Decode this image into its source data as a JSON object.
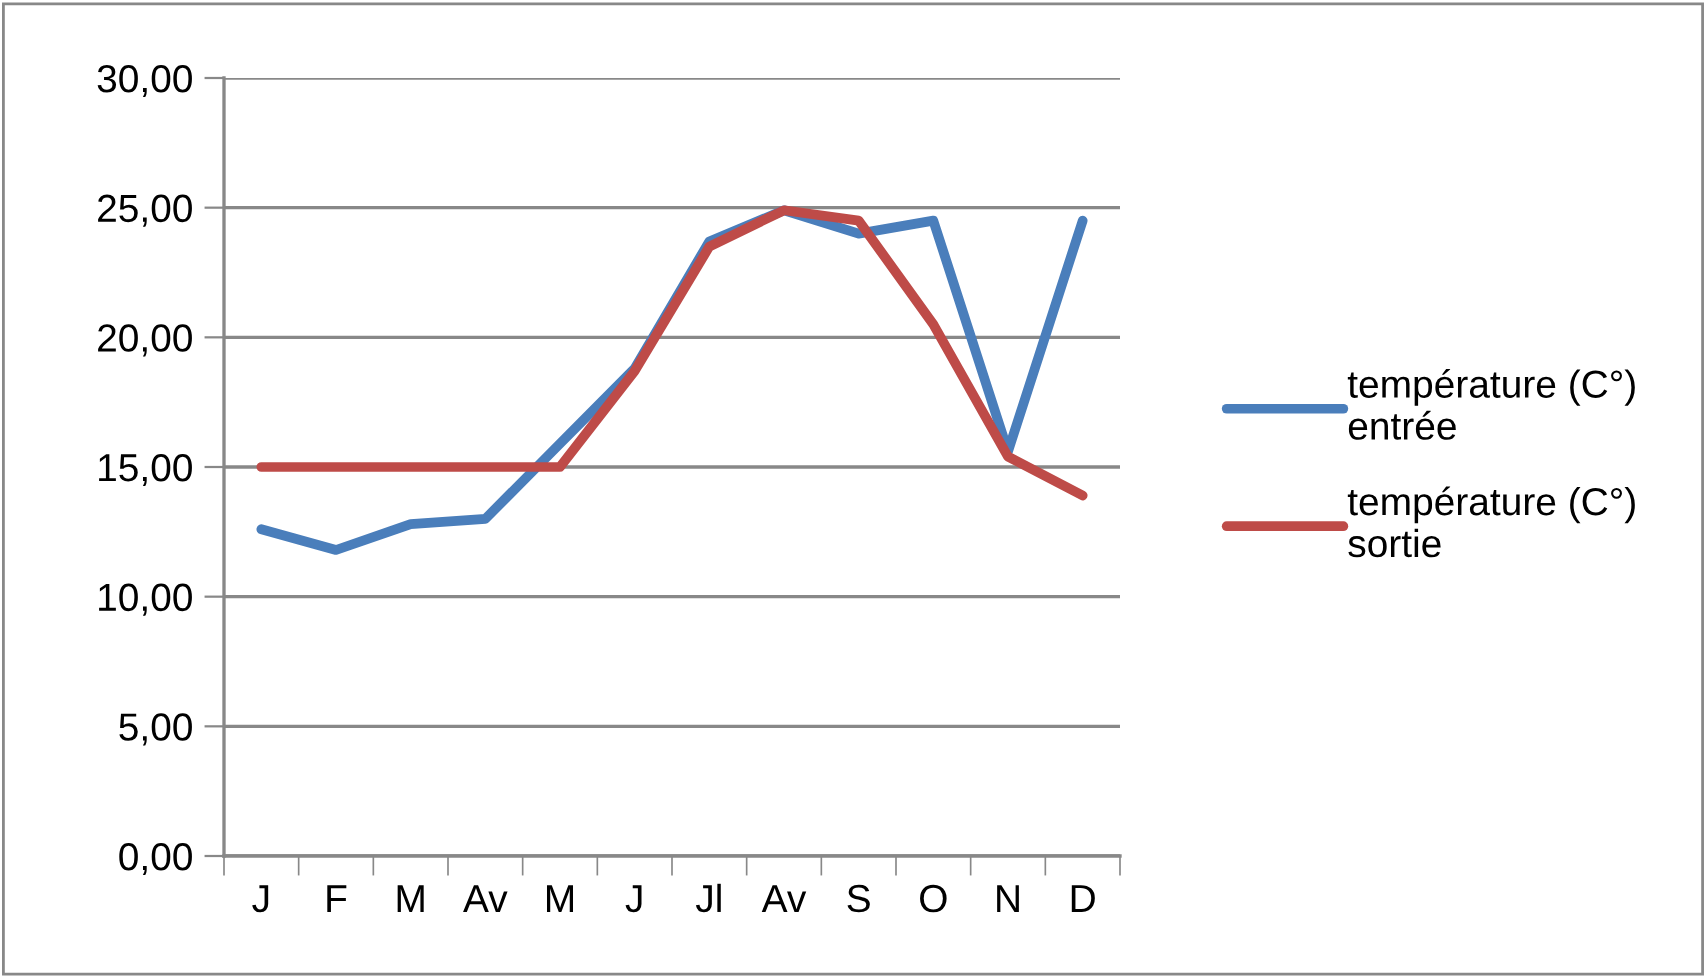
{
  "chart_data": {
    "type": "line",
    "categories": [
      "J",
      "F",
      "M",
      "Av",
      "M",
      "J",
      "Jl",
      "Av",
      "S",
      "O",
      "N",
      "D"
    ],
    "series": [
      {
        "name": "température (C°)\nentrée",
        "color": "#4a7ebb",
        "values": [
          12.6,
          11.8,
          12.8,
          13.0,
          15.9,
          18.8,
          23.7,
          24.9,
          24.0,
          24.5,
          15.6,
          24.5
        ]
      },
      {
        "name": "température (C°)\nsortie",
        "color": "#be4b48",
        "values": [
          15.0,
          15.0,
          15.0,
          15.0,
          15.0,
          18.7,
          23.5,
          24.9,
          24.5,
          20.5,
          15.4,
          13.9
        ]
      }
    ],
    "ylim": [
      0,
      30
    ],
    "yticks": [
      {
        "value": 0,
        "label": "0,00"
      },
      {
        "value": 5,
        "label": "5,00"
      },
      {
        "value": 10,
        "label": "10,00"
      },
      {
        "value": 15,
        "label": "15,00"
      },
      {
        "value": 20,
        "label": "20,00"
      },
      {
        "value": 25,
        "label": "25,00"
      },
      {
        "value": 30,
        "label": "30,00"
      }
    ],
    "grid": "y",
    "legend": "right",
    "marker": "none",
    "line_style": "solid"
  }
}
